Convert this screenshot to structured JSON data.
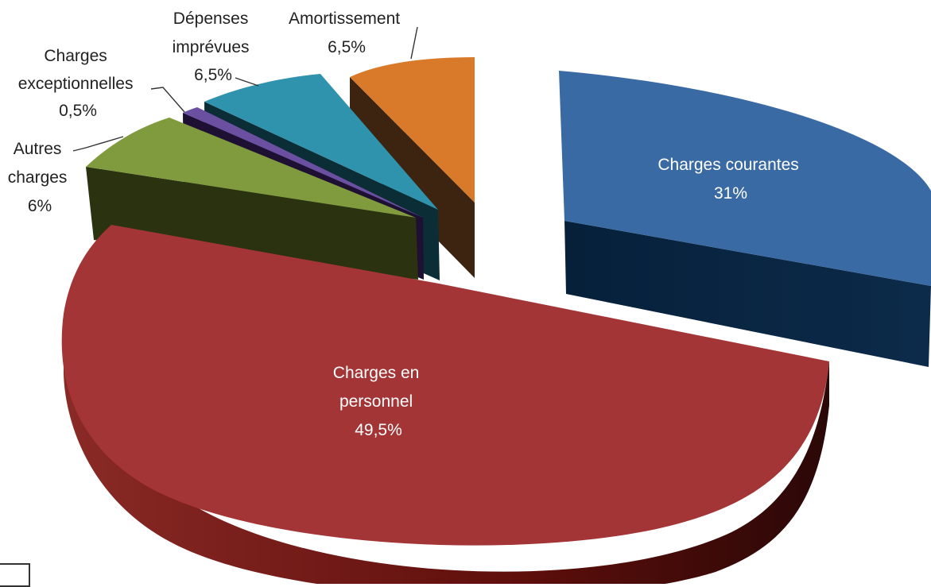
{
  "chart_data": {
    "type": "pie",
    "style": "3d-exploded",
    "slices": [
      {
        "key": "courantes",
        "name": "Charges courantes",
        "label_lines": [
          "Charges courantes",
          "31%"
        ],
        "value": 31,
        "color": "#3a6aa3"
      },
      {
        "key": "personnel",
        "name": "Charges en personnel",
        "label_lines": [
          "Charges en",
          "personnel",
          "49,5%"
        ],
        "value": 49.5,
        "color": "#a33536"
      },
      {
        "key": "autres",
        "name": "Autres charges",
        "label_lines": [
          "Autres",
          "charges",
          "6%"
        ],
        "value": 6,
        "color": "#7f9b3e"
      },
      {
        "key": "exception",
        "name": "Charges exceptionnelles",
        "label_lines": [
          "Charges",
          "exceptionnelles",
          "0,5%"
        ],
        "value": 0.5,
        "color": "#6b4fa0"
      },
      {
        "key": "imprevues",
        "name": "Dépenses imprévues",
        "label_lines": [
          "Dépenses",
          "imprévues",
          "6,5%"
        ],
        "value": 6.5,
        "color": "#2f93ad"
      },
      {
        "key": "amort",
        "name": "Amortissement",
        "label_lines": [
          "Amortissement",
          "6,5%"
        ],
        "value": 6.5,
        "color": "#d97a2b"
      }
    ],
    "legend": "none",
    "title": ""
  }
}
